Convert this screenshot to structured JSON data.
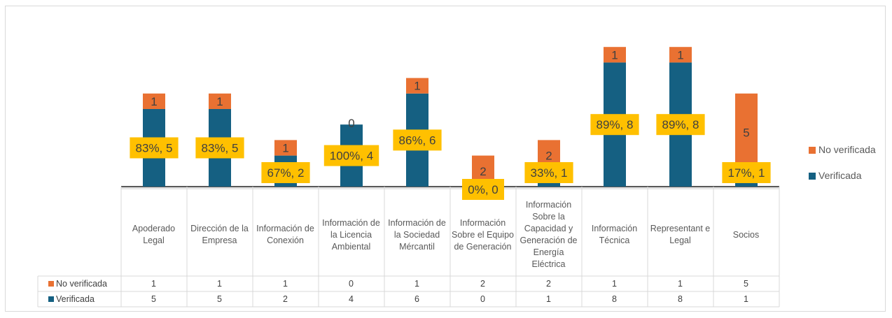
{
  "colors": {
    "no_verificada": "#E97132",
    "verificada": "#156082",
    "label_bg": "#FFC000",
    "grid": "#d9d9d9"
  },
  "chart_data": {
    "type": "bar",
    "stacked": true,
    "categories": [
      "Apoderado Legal",
      "Dirección de la Empresa",
      "Información de Conexión",
      "Información de la Licencia Ambiental",
      "Información de la Sociedad Mércantil",
      "Información Sobre el Equipo de Generación",
      "Información Sobre la Capacidad y Generación de Energía Eléctrica",
      "Información Técnica",
      "Representant e Legal",
      "Socios"
    ],
    "series": [
      {
        "name": "Verificada",
        "values": [
          5,
          5,
          2,
          4,
          6,
          0,
          1,
          8,
          8,
          1
        ]
      },
      {
        "name": "No verificada",
        "values": [
          1,
          1,
          1,
          0,
          1,
          2,
          2,
          1,
          1,
          5
        ]
      }
    ],
    "data_labels": {
      "verificada": [
        "83%, 5",
        "83%, 5",
        "67%, 2",
        "100%, 4",
        "86%, 6",
        "0%, 0",
        "33%, 1",
        "89%, 8",
        "89%, 8",
        "17%, 1"
      ],
      "no_verificada": [
        "1",
        "1",
        "1",
        "0",
        "1",
        "2",
        "2",
        "1",
        "1",
        "5"
      ]
    },
    "ylim": [
      0,
      9
    ],
    "legend": {
      "position": "right",
      "entries": [
        "No verificada",
        "Verificada"
      ]
    },
    "data_table": {
      "rows": [
        {
          "label": "No verificada",
          "values": [
            "1",
            "1",
            "1",
            "0",
            "1",
            "2",
            "2",
            "1",
            "1",
            "5"
          ]
        },
        {
          "label": "Verificada",
          "values": [
            "5",
            "5",
            "2",
            "4",
            "6",
            "0",
            "1",
            "8",
            "8",
            "1"
          ]
        }
      ]
    },
    "title": "",
    "xlabel": "",
    "ylabel": ""
  }
}
